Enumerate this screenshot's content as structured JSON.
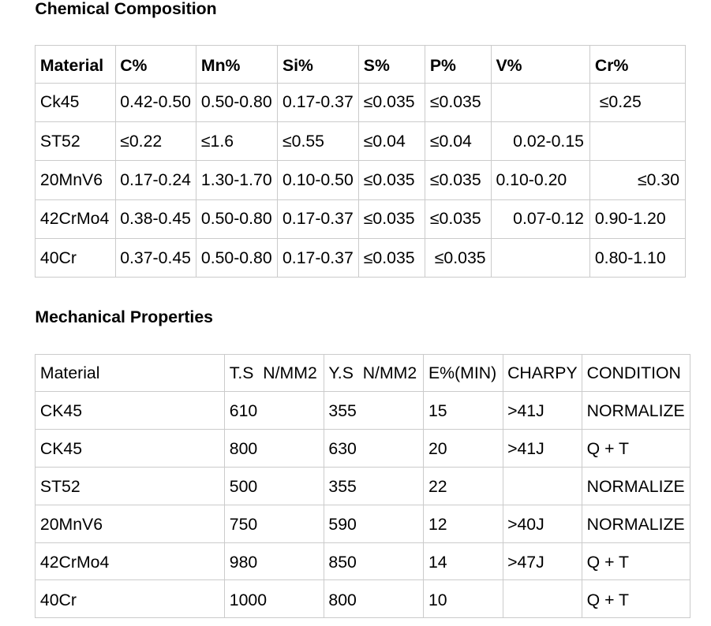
{
  "page": {
    "background": "#ffffff",
    "text_color": "#000000",
    "border_color": "#cbcbcb"
  },
  "sections": [
    {
      "title": "Chemical Composition",
      "table": {
        "headers": [
          "Material",
          "C%",
          "Mn%",
          "Si%",
          "S%",
          "P%",
          "V%",
          "Cr%"
        ],
        "rows": [
          [
            {
              "t": "Ck45"
            },
            {
              "t": "0.42-0.50"
            },
            {
              "t": "0.50-0.80"
            },
            {
              "t": "0.17-0.37"
            },
            {
              "t": "≤0.035"
            },
            {
              "t": "≤0.035"
            },
            {
              "t": ""
            },
            {
              "t": " ≤0.25"
            }
          ],
          [
            {
              "t": "ST52"
            },
            {
              "t": "≤0.22"
            },
            {
              "t": "≤1.6"
            },
            {
              "t": "≤0.55"
            },
            {
              "t": "≤0.04"
            },
            {
              "t": "≤0.04"
            },
            {
              "t": "0.02-0.15",
              "a": "r"
            },
            {
              "t": ""
            }
          ],
          [
            {
              "t": "20MnV6"
            },
            {
              "t": "0.17-0.24"
            },
            {
              "t": "1.30-1.70"
            },
            {
              "t": "0.10-0.50"
            },
            {
              "t": "≤0.035"
            },
            {
              "t": "≤0.035"
            },
            {
              "t": "0.10-0.20"
            },
            {
              "t": "≤0.30",
              "a": "r"
            }
          ],
          [
            {
              "t": "42CrMo4"
            },
            {
              "t": "0.38-0.45"
            },
            {
              "t": "0.50-0.80"
            },
            {
              "t": "0.17-0.37"
            },
            {
              "t": "≤0.035"
            },
            {
              "t": "≤0.035"
            },
            {
              "t": "0.07-0.12",
              "a": "r"
            },
            {
              "t": "0.90-1.20"
            }
          ],
          [
            {
              "t": "40Cr"
            },
            {
              "t": "0.37-0.45"
            },
            {
              "t": "0.50-0.80"
            },
            {
              "t": "0.17-0.37"
            },
            {
              "t": "≤0.035"
            },
            {
              "t": " ≤0.035"
            },
            {
              "t": ""
            },
            {
              "t": "0.80-1.10"
            }
          ]
        ]
      }
    },
    {
      "title": "Mechanical Properties",
      "table": {
        "headers": [
          "Material",
          "T.S  N/MM2",
          "Y.S  N/MM2",
          "E%(MIN)",
          "CHARPY",
          "CONDITION"
        ],
        "rows": [
          [
            {
              "t": "CK45"
            },
            {
              "t": "610"
            },
            {
              "t": "355"
            },
            {
              "t": "15"
            },
            {
              "t": ">41J"
            },
            {
              "t": "NORMALIZE"
            }
          ],
          [
            {
              "t": "CK45"
            },
            {
              "t": "800"
            },
            {
              "t": "630"
            },
            {
              "t": "20"
            },
            {
              "t": ">41J"
            },
            {
              "t": "Q + T"
            }
          ],
          [
            {
              "t": "ST52"
            },
            {
              "t": "500"
            },
            {
              "t": "355"
            },
            {
              "t": "22"
            },
            {
              "t": ""
            },
            {
              "t": "NORMALIZE"
            }
          ],
          [
            {
              "t": "20MnV6"
            },
            {
              "t": "750"
            },
            {
              "t": "590"
            },
            {
              "t": "12"
            },
            {
              "t": ">40J"
            },
            {
              "t": "NORMALIZE"
            }
          ],
          [
            {
              "t": "42CrMo4"
            },
            {
              "t": "980"
            },
            {
              "t": "850"
            },
            {
              "t": "14"
            },
            {
              "t": ">47J"
            },
            {
              "t": "Q + T"
            }
          ],
          [
            {
              "t": "40Cr"
            },
            {
              "t": "1000"
            },
            {
              "t": "800"
            },
            {
              "t": "10"
            },
            {
              "t": ""
            },
            {
              "t": "Q + T"
            }
          ]
        ]
      }
    }
  ]
}
